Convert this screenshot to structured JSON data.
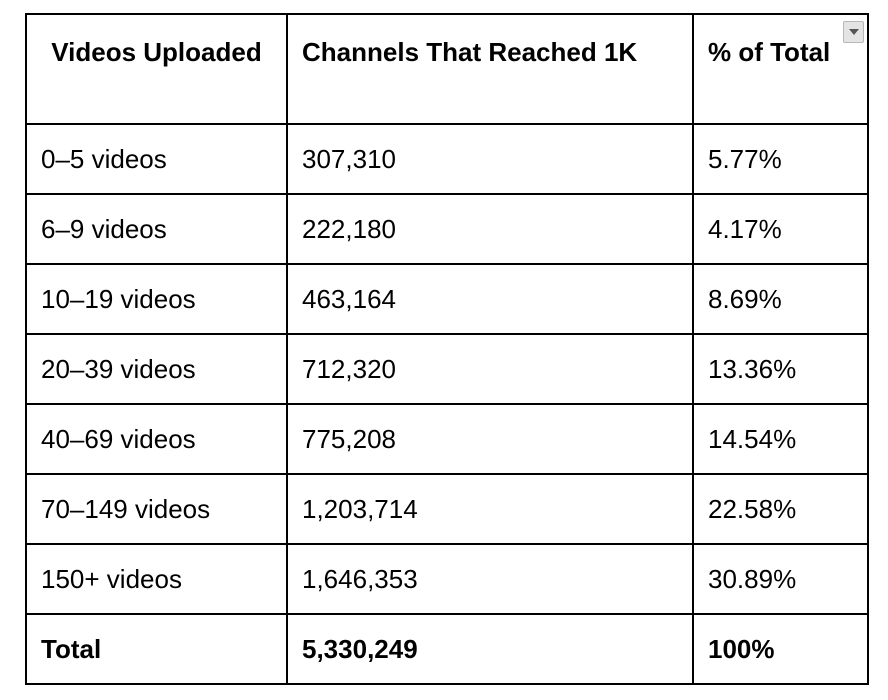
{
  "table": {
    "headers": [
      "Videos Uploaded",
      "Channels That Reached 1K",
      "% of Total"
    ],
    "rows": [
      [
        "0–5 videos",
        "307,310",
        "5.77%"
      ],
      [
        "6–9 videos",
        "222,180",
        "4.17%"
      ],
      [
        "10–19 videos",
        "463,164",
        "8.69%"
      ],
      [
        "20–39 videos",
        "712,320",
        "13.36%"
      ],
      [
        "40–69 videos",
        "775,208",
        "14.54%"
      ],
      [
        "70–149 videos",
        "1,203,714",
        "22.58%"
      ],
      [
        "150+ videos",
        "1,646,353",
        "30.89%"
      ]
    ],
    "total": [
      "Total",
      "5,330,249",
      "100%"
    ]
  },
  "icons": {
    "filter": "chevron-down-icon"
  }
}
